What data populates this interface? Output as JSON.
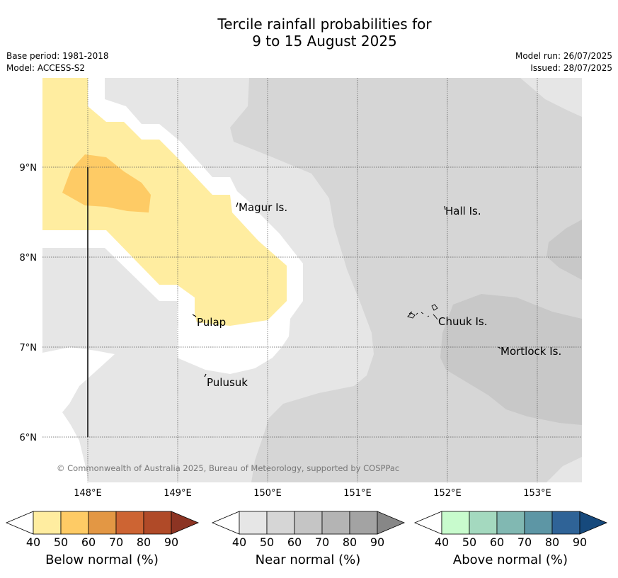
{
  "title": {
    "line1": "Tercile rainfall probabilities for",
    "line2": "9 to 15 August 2025"
  },
  "info_left": {
    "base_period": "Base period: 1981-2018",
    "model": "Model: ACCESS-S2"
  },
  "info_right": {
    "model_run": "Model run: 26/07/2025",
    "issued": "Issued: 28/07/2025"
  },
  "map": {
    "lon_labels": [
      "148°E",
      "149°E",
      "150°E",
      "151°E",
      "152°E",
      "153°E"
    ],
    "lat_labels": [
      "9°N",
      "8°N",
      "7°N",
      "6°N"
    ],
    "islands": [
      {
        "name": "Magur Is."
      },
      {
        "name": "Hall Is."
      },
      {
        "name": "Pulap"
      },
      {
        "name": "Chuuk Is."
      },
      {
        "name": "Mortlock Is."
      },
      {
        "name": "Pulusuk"
      }
    ],
    "copyright": "© Commonwealth of Australia 2025, Bureau of Meteorology, supported by COSPPac",
    "colors": {
      "below_40_50": "#ffeda0",
      "below_50_60": "#fecb65",
      "near_40_50": "#e6e6e6",
      "near_50_60": "#d6d6d6",
      "near_60_70": "#c8c8c8",
      "blank": "#ffffff"
    }
  },
  "colorbars": [
    {
      "label": "Below normal (%)",
      "ticks": [
        "40",
        "50",
        "60",
        "70",
        "80",
        "90"
      ],
      "colors": [
        "#ffeda0",
        "#fecb65",
        "#e39744",
        "#cd6433",
        "#b04a28",
        "#8c3423"
      ]
    },
    {
      "label": "Near normal (%)",
      "ticks": [
        "40",
        "50",
        "60",
        "70",
        "80",
        "90"
      ],
      "colors": [
        "#e6e6e6",
        "#d6d6d6",
        "#c5c5c5",
        "#b4b4b4",
        "#a3a3a3",
        "#878787"
      ]
    },
    {
      "label": "Above normal (%)",
      "ticks": [
        "40",
        "50",
        "60",
        "70",
        "80",
        "90"
      ],
      "colors": [
        "#c8fbcd",
        "#a4d9bf",
        "#81b8b2",
        "#5d96a5",
        "#2f6397",
        "#16497c"
      ]
    }
  ]
}
